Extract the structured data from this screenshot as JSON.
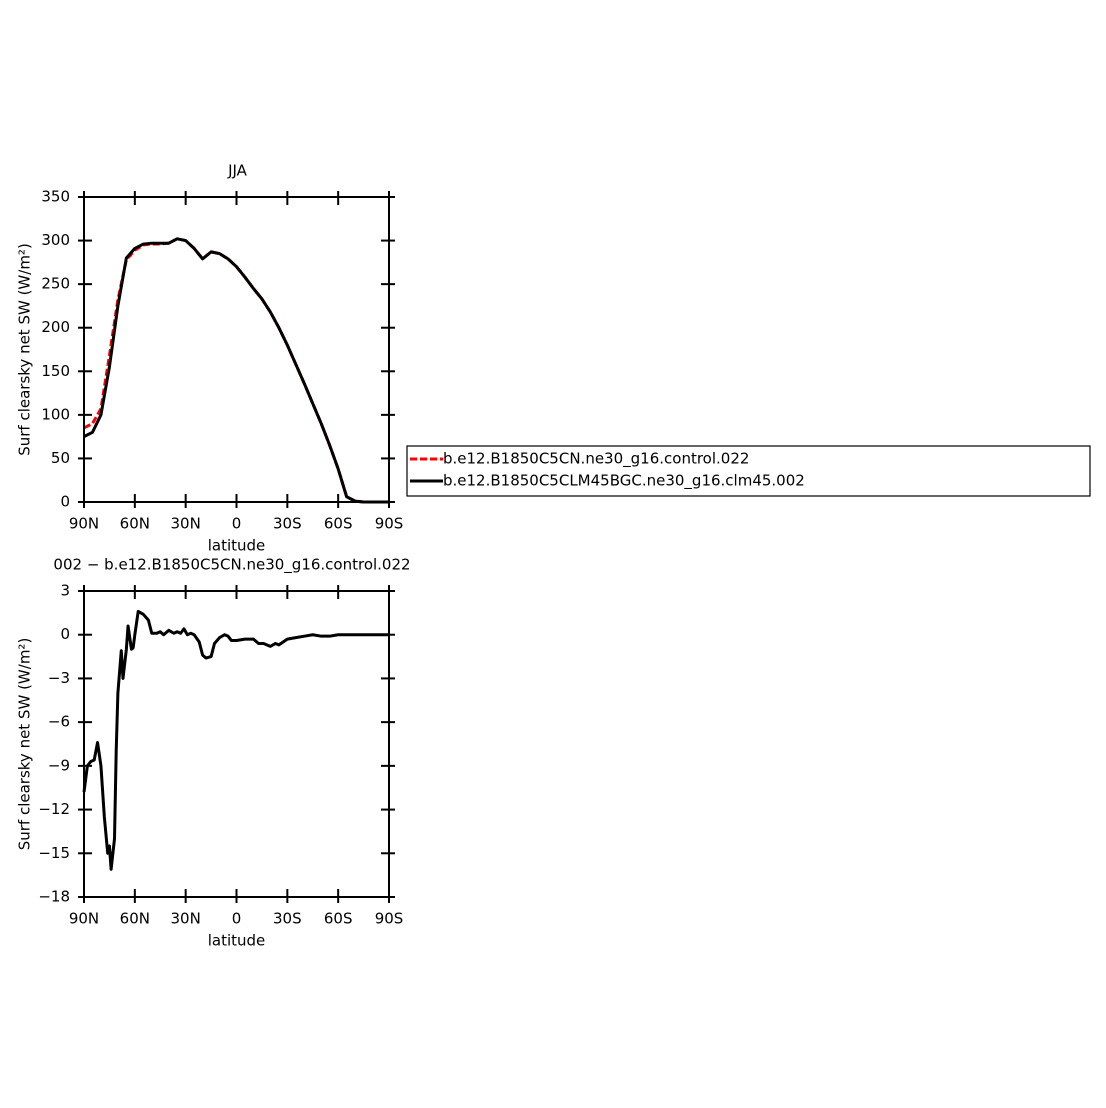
{
  "chart_data": [
    {
      "type": "line",
      "title": "JJA",
      "xlabel": "latitude",
      "ylabel": "Surf clearsky net SW (W/m²)",
      "x": [
        90,
        85,
        80,
        75,
        70,
        65,
        60,
        55,
        50,
        45,
        40,
        35,
        30,
        25,
        20,
        15,
        10,
        5,
        0,
        -5,
        -10,
        -15,
        -20,
        -25,
        -30,
        -35,
        -40,
        -45,
        -50,
        -55,
        -60,
        -65,
        -70,
        -75,
        -80,
        -85,
        -90
      ],
      "series": [
        {
          "name": "b.e12.B1850C5CN.ne30_g16.control.022",
          "color": "#ff0000",
          "dash": true,
          "values": [
            85,
            90,
            107,
            168,
            232,
            278,
            289,
            295,
            296,
            296,
            297,
            302,
            300,
            291,
            279,
            287,
            285,
            279,
            270,
            258,
            245,
            233,
            218,
            200,
            180,
            158,
            136,
            113,
            90,
            65,
            38,
            6,
            1,
            0,
            0,
            0,
            0
          ]
        },
        {
          "name": "b.e12.B1850C5CLM45BGC.ne30_g16.clm45.002",
          "color": "#000000",
          "dash": false,
          "values": [
            75,
            80,
            100,
            155,
            225,
            280,
            291,
            296,
            297,
            297,
            297,
            302,
            300,
            291,
            279,
            287,
            285,
            279,
            270,
            258,
            245,
            233,
            218,
            200,
            180,
            158,
            136,
            113,
            90,
            65,
            38,
            6,
            1,
            0,
            0,
            0,
            0
          ]
        }
      ],
      "xlim": [
        90,
        -90
      ],
      "xticks": [
        {
          "value": 90,
          "label": "90N"
        },
        {
          "value": 60,
          "label": "60N"
        },
        {
          "value": 30,
          "label": "30N"
        },
        0,
        {
          "value": -30,
          "label": "30S"
        },
        {
          "value": -60,
          "label": "60S"
        },
        {
          "value": -90,
          "label": "90S"
        }
      ],
      "ylim": [
        0,
        350
      ],
      "yticks": [
        0,
        50,
        100,
        150,
        200,
        250,
        300,
        350
      ]
    },
    {
      "type": "line",
      "title": "002 − b.e12.B1850C5CN.ne30_g16.control.022",
      "xlabel": "latitude",
      "ylabel": "Surf clearsky net SW (W/m²)",
      "x": [
        90,
        88,
        86,
        84,
        82,
        80,
        78,
        76,
        75,
        74,
        72,
        71,
        70,
        68,
        67,
        65,
        64,
        62,
        61,
        60,
        58,
        55,
        52,
        50,
        47,
        45,
        43,
        40,
        37,
        35,
        33,
        31,
        29,
        27,
        25,
        22,
        20,
        18,
        15,
        13,
        10,
        7,
        5,
        3,
        0,
        -5,
        -10,
        -13,
        -16,
        -20,
        -23,
        -25,
        -30,
        -35,
        -40,
        -45,
        -50,
        -55,
        -60,
        -70,
        -80,
        -90
      ],
      "series": [
        {
          "color": "#000000",
          "dash": false,
          "values": [
            -10.8,
            -9.0,
            -8.7,
            -8.6,
            -7.4,
            -9.0,
            -12.5,
            -15.0,
            -14.5,
            -16.1,
            -14.0,
            -8.0,
            -4.0,
            -1.1,
            -3.0,
            -1.0,
            0.6,
            -1.0,
            -0.9,
            0.0,
            1.6,
            1.4,
            1.0,
            0.1,
            0.1,
            0.2,
            0.0,
            0.3,
            0.1,
            0.2,
            0.1,
            0.4,
            0.0,
            0.1,
            0.0,
            -0.5,
            -1.4,
            -1.6,
            -1.5,
            -0.6,
            -0.2,
            0.0,
            -0.1,
            -0.4,
            -0.4,
            -0.3,
            -0.3,
            -0.6,
            -0.6,
            -0.8,
            -0.6,
            -0.7,
            -0.3,
            -0.2,
            -0.1,
            0.0,
            -0.1,
            -0.1,
            0.0,
            0.0,
            0.0,
            0.0
          ]
        }
      ],
      "xlim": [
        90,
        -90
      ],
      "xticks": [
        {
          "value": 90,
          "label": "90N"
        },
        {
          "value": 60,
          "label": "60N"
        },
        {
          "value": 30,
          "label": "30N"
        },
        0,
        {
          "value": -30,
          "label": "30S"
        },
        {
          "value": -60,
          "label": "60S"
        },
        {
          "value": -90,
          "label": "90S"
        }
      ],
      "ylim": [
        -18,
        3
      ],
      "yticks": [
        3,
        0,
        {
          "value": -3,
          "label": "−3"
        },
        {
          "value": -6,
          "label": "−6"
        },
        {
          "value": -9,
          "label": "−9"
        },
        {
          "value": -12,
          "label": "−12"
        },
        {
          "value": -15,
          "label": "−15"
        },
        {
          "value": -18,
          "label": "−18"
        }
      ]
    }
  ]
}
